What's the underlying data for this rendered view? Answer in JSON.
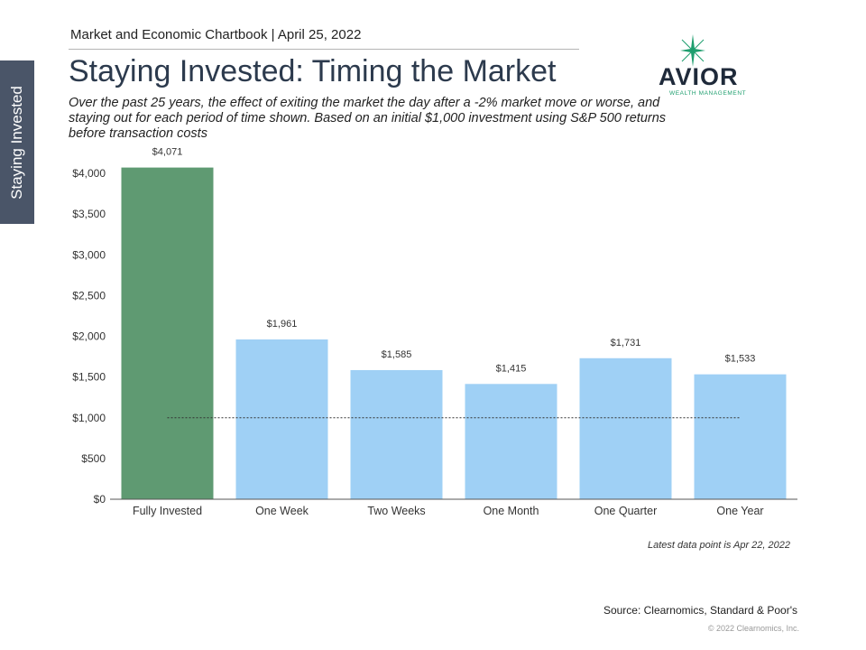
{
  "side_tab": {
    "label": "Staying Invested"
  },
  "header": {
    "line": "Market and Economic Chartbook | April 25, 2022"
  },
  "title": "Staying Invested: Timing the Market",
  "subtitle": "Over the past 25 years, the effect of exiting the market the day after a -2% market move or worse, and staying out for each period of time shown. Based on an initial $1,000 investment using S&P 500 returns before transaction costs",
  "logo": {
    "name": "AVIOR",
    "tagline": "WEALTH MANAGEMENT",
    "icon": "star-icon",
    "color": "#1e9e6e"
  },
  "chart_data": {
    "type": "bar",
    "categories": [
      "Fully Invested",
      "One Week",
      "Two Weeks",
      "One Month",
      "One Quarter",
      "One Year"
    ],
    "values": [
      4071,
      1961,
      1585,
      1415,
      1731,
      1533
    ],
    "value_labels": [
      "$4,071",
      "$1,961",
      "$1,585",
      "$1,415",
      "$1,731",
      "$1,533"
    ],
    "y_ticks": [
      0,
      500,
      1000,
      1500,
      2000,
      2500,
      3000,
      3500,
      4000
    ],
    "y_tick_labels": [
      "$0",
      "$500",
      "$1,000",
      "$1,500",
      "$2,000",
      "$2,500",
      "$3,000",
      "$3,500",
      "$4,000"
    ],
    "ylim": [
      0,
      4000
    ],
    "reference_line": 1000,
    "colors": [
      "#5f9a72",
      "#9fd0f5",
      "#9fd0f5",
      "#9fd0f5",
      "#9fd0f5",
      "#9fd0f5"
    ],
    "grid": false
  },
  "notes": {
    "latest": "Latest data point is Apr 22, 2022",
    "source": "Source: Clearnomics, Standard & Poor's",
    "copyright": "© 2022 Clearnomics, Inc."
  }
}
